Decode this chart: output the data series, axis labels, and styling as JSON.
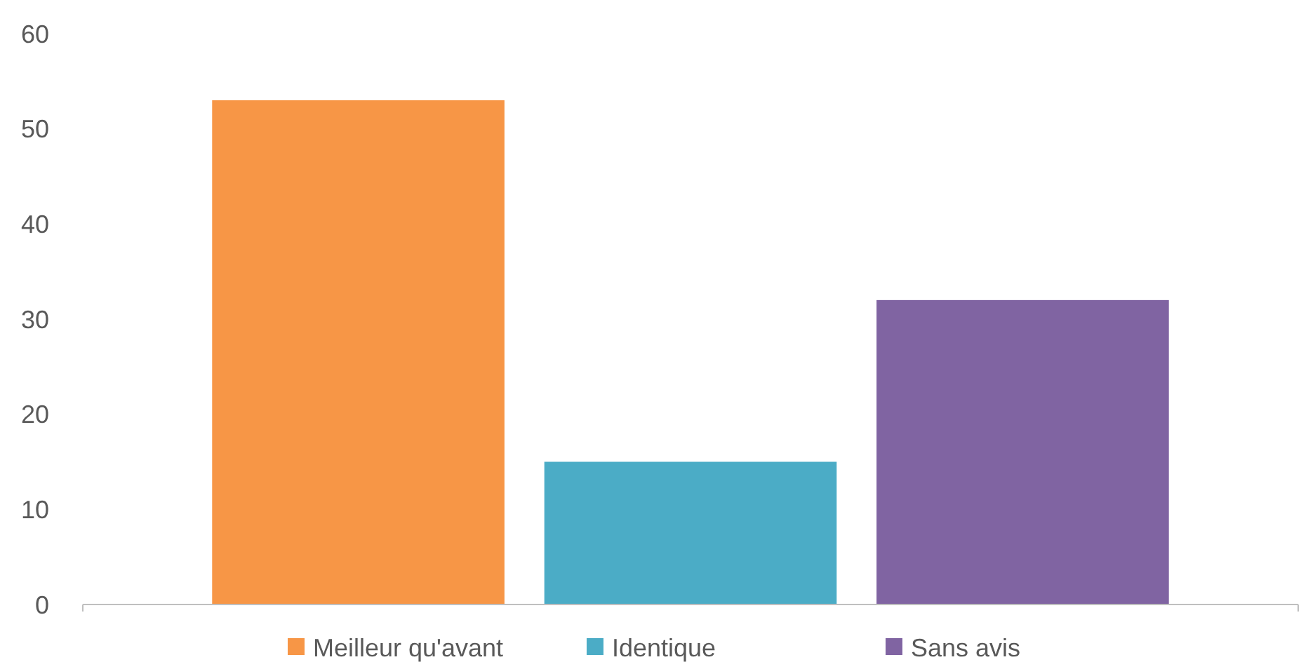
{
  "chart_data": {
    "type": "bar",
    "categories": [
      null
    ],
    "series": [
      {
        "name": "Meilleur qu'avant",
        "color": "#f79646",
        "values": [
          53
        ]
      },
      {
        "name": "Identique",
        "color": "#4bacc6",
        "values": [
          15
        ]
      },
      {
        "name": "Sans avis",
        "color": "#8064a2",
        "values": [
          32
        ]
      }
    ],
    "ylim": [
      0,
      60
    ],
    "yticks": [
      0,
      10,
      20,
      30,
      40,
      50,
      60
    ],
    "grid": false,
    "legend": "bottom"
  }
}
